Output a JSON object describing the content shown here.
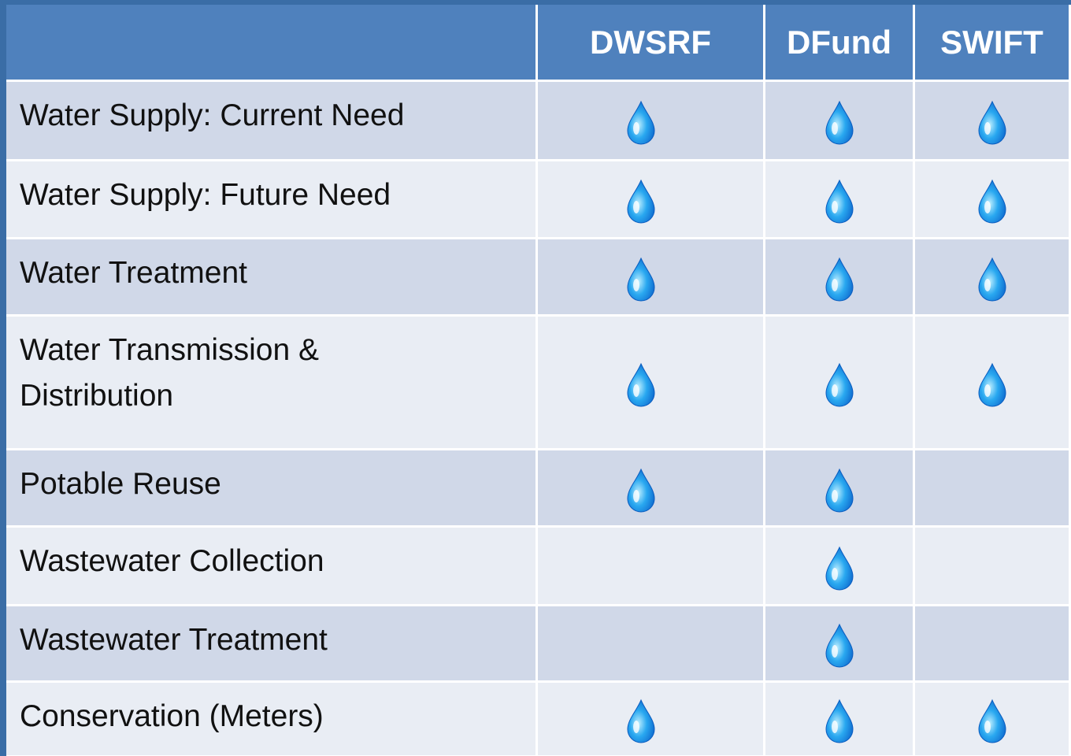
{
  "table": {
    "columns": [
      "DWSRF",
      "DFund",
      "SWIFT"
    ],
    "rows": [
      {
        "label": "Water Supply: Current Need",
        "eligible": [
          true,
          true,
          true
        ]
      },
      {
        "label": "Water Supply: Future Need",
        "eligible": [
          true,
          true,
          true
        ]
      },
      {
        "label": "Water Treatment",
        "eligible": [
          true,
          true,
          true
        ]
      },
      {
        "label": "Water Transmission &\nDistribution",
        "eligible": [
          true,
          true,
          true
        ]
      },
      {
        "label": "Potable Reuse",
        "eligible": [
          true,
          true,
          false
        ]
      },
      {
        "label": "Wastewater Collection",
        "eligible": [
          false,
          true,
          false
        ]
      },
      {
        "label": "Wastewater Treatment",
        "eligible": [
          false,
          true,
          false
        ]
      },
      {
        "label": "Conservation (Meters)",
        "eligible": [
          true,
          true,
          true
        ]
      }
    ]
  }
}
